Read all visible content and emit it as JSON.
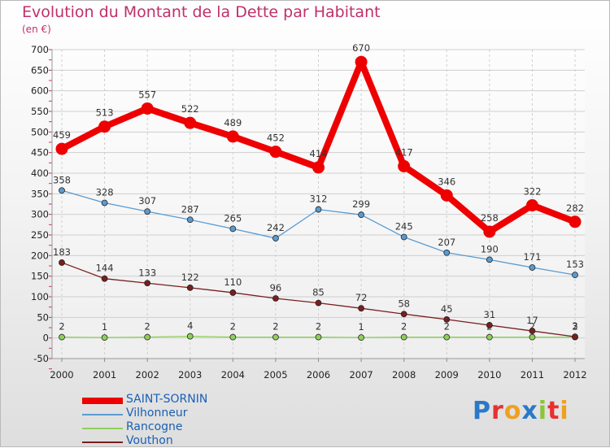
{
  "title": "Evolution du Montant de la Dette par Habitant",
  "unit": "(en €)",
  "brand": {
    "text": "Proxiti",
    "letters": [
      "P",
      "r",
      "o",
      "x",
      "i",
      "t",
      "i"
    ],
    "colors": [
      "#2a78c8",
      "#e83030",
      "#f0a020",
      "#2a78c8",
      "#8bc43a",
      "#e83030",
      "#f0a020"
    ]
  },
  "chart_data": {
    "type": "line",
    "x": [
      "2000",
      "2001",
      "2002",
      "2003",
      "2004",
      "2005",
      "2006",
      "2007",
      "2008",
      "2009",
      "2010",
      "2011",
      "2012"
    ],
    "yticks": [
      "700",
      "650",
      "600",
      "550",
      "500",
      "450",
      "400",
      "350",
      "300",
      "250",
      "200",
      "150",
      "100",
      "50",
      "0",
      "-50"
    ],
    "ylim": [
      -50,
      700
    ],
    "grid": true,
    "legend_position": "bottom-left",
    "series": [
      {
        "name": "SAINT-SORNIN",
        "color": "#ee0000",
        "values": [
          459,
          513,
          557,
          522,
          489,
          452,
          414,
          670,
          417,
          346,
          258,
          322,
          282
        ],
        "labels": [
          "459",
          "513",
          "557",
          "522",
          "489",
          "452",
          "414",
          "670",
          "417",
          "346",
          "258",
          "322",
          "282"
        ]
      },
      {
        "name": "Vilhonneur",
        "color": "#5a9bd0",
        "values": [
          358,
          328,
          307,
          287,
          265,
          242,
          312,
          299,
          245,
          207,
          190,
          171,
          153
        ],
        "labels": [
          "358",
          "328",
          "307",
          "287",
          "265",
          "242",
          "312",
          "299",
          "245",
          "207",
          "190",
          "171",
          "153"
        ]
      },
      {
        "name": "Rancogne",
        "color": "#8ed05a",
        "values": [
          2,
          1,
          2,
          4,
          2,
          2,
          2,
          1,
          2,
          2,
          2,
          2,
          2
        ],
        "labels": [
          "2",
          "1",
          "2",
          "4",
          "2",
          "2",
          "2",
          "1",
          "2",
          "2",
          "2",
          "2",
          "2"
        ]
      },
      {
        "name": "Vouthon",
        "color": "#7a1e1e",
        "values": [
          183,
          144,
          133,
          122,
          110,
          96,
          85,
          72,
          58,
          45,
          31,
          17,
          3
        ],
        "labels": [
          "183",
          "144",
          "133",
          "122",
          "110",
          "96",
          "85",
          "72",
          "58",
          "45",
          "31",
          "17",
          "3"
        ]
      }
    ]
  }
}
